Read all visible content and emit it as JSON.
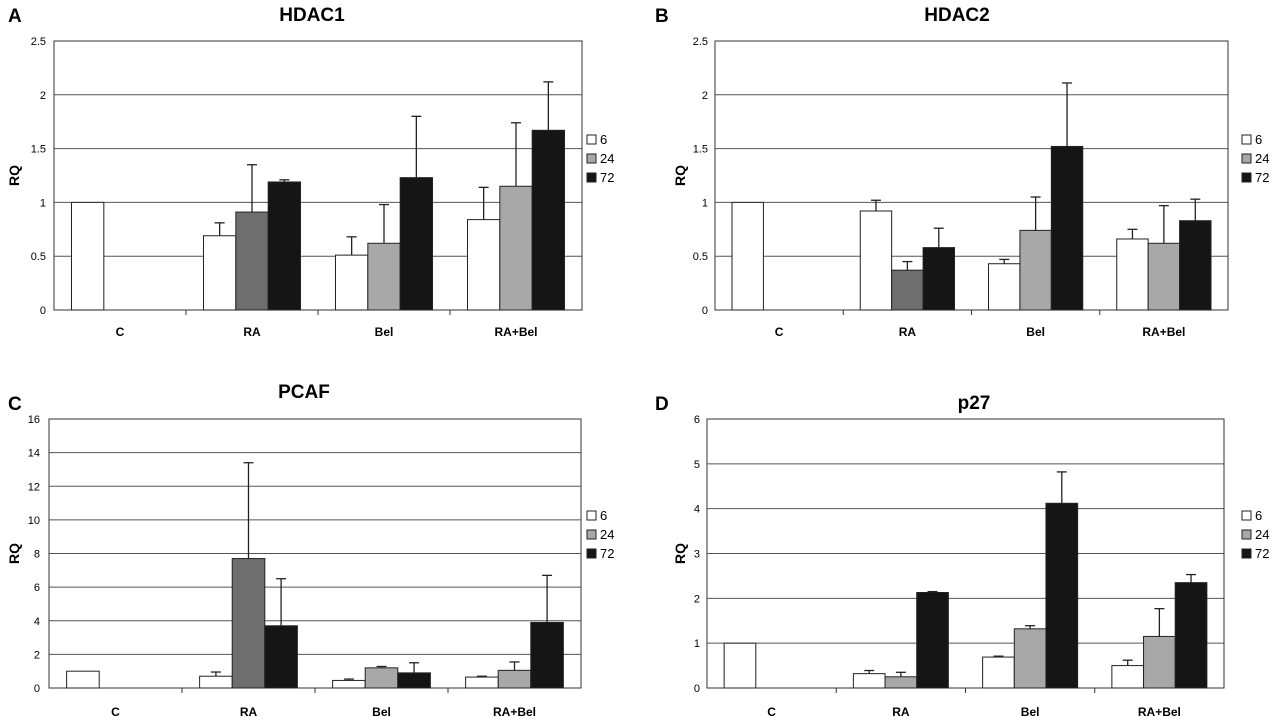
{
  "legend_entries": [
    "6",
    "24",
    "72"
  ],
  "series_colors": {
    "6": "#ffffff",
    "24": "#a8a8a8",
    "72": "#151515",
    "24-dark": "#6e6e6e"
  },
  "chart_data": [
    {
      "letter": "A",
      "title": "HDAC1",
      "type": "bar",
      "ylabel": "RQ",
      "ylim": [
        0,
        2.5
      ],
      "yticks": [
        "0",
        "0.5",
        "1",
        "1.5",
        "2",
        "2.5"
      ],
      "categories": [
        "C",
        "RA",
        "Bel",
        "RA+Bel"
      ],
      "grid": true,
      "legend_position": "right",
      "series": [
        {
          "name": "6",
          "values": [
            1.0,
            0.69,
            0.51,
            0.84
          ],
          "errors": [
            null,
            0.12,
            0.17,
            0.3
          ]
        },
        {
          "name": "24",
          "values": [
            null,
            0.91,
            0.62,
            1.15
          ],
          "errors": [
            null,
            0.44,
            0.36,
            0.59
          ]
        },
        {
          "name": "72",
          "values": [
            null,
            1.19,
            1.23,
            1.67
          ],
          "errors": [
            null,
            0.02,
            0.57,
            0.45
          ]
        }
      ]
    },
    {
      "letter": "B",
      "title": "HDAC2",
      "type": "bar",
      "ylabel": "RQ",
      "ylim": [
        0,
        2.5
      ],
      "yticks": [
        "0",
        "0.5",
        "1",
        "1.5",
        "2",
        "2.5"
      ],
      "categories": [
        "C",
        "RA",
        "Bel",
        "RA+Bel"
      ],
      "grid": true,
      "legend_position": "right",
      "series": [
        {
          "name": "6",
          "values": [
            1.0,
            0.92,
            0.43,
            0.66
          ],
          "errors": [
            null,
            0.1,
            0.04,
            0.09
          ]
        },
        {
          "name": "24",
          "values": [
            null,
            0.37,
            0.74,
            0.62
          ],
          "errors": [
            null,
            0.08,
            0.31,
            0.35
          ]
        },
        {
          "name": "72",
          "values": [
            null,
            0.58,
            1.52,
            0.83
          ],
          "errors": [
            null,
            0.18,
            0.59,
            0.2
          ]
        }
      ]
    },
    {
      "letter": "C",
      "title": "PCAF",
      "type": "bar",
      "ylabel": "RQ",
      "ylim": [
        0,
        16
      ],
      "yticks": [
        "0",
        "2",
        "4",
        "6",
        "8",
        "10",
        "12",
        "14",
        "16"
      ],
      "categories": [
        "C",
        "RA",
        "Bel",
        "RA+Bel"
      ],
      "grid": true,
      "legend_position": "right",
      "series": [
        {
          "name": "6",
          "values": [
            1.0,
            0.7,
            0.45,
            0.65
          ],
          "errors": [
            null,
            0.25,
            0.08,
            0.05
          ]
        },
        {
          "name": "24",
          "values": [
            null,
            7.7,
            1.2,
            1.05
          ],
          "errors": [
            null,
            5.7,
            0.08,
            0.5
          ]
        },
        {
          "name": "72",
          "values": [
            null,
            3.7,
            0.9,
            3.9
          ],
          "errors": [
            null,
            2.8,
            0.6,
            2.8
          ]
        }
      ]
    },
    {
      "letter": "D",
      "title": "p27",
      "type": "bar",
      "ylabel": "RQ",
      "ylim": [
        0,
        6
      ],
      "yticks": [
        "0",
        "1",
        "2",
        "3",
        "4",
        "5",
        "6"
      ],
      "categories": [
        "C",
        "RA",
        "Bel",
        "RA+Bel"
      ],
      "grid": true,
      "legend_position": "right",
      "series": [
        {
          "name": "6",
          "values": [
            1.0,
            0.32,
            0.69,
            0.5
          ],
          "errors": [
            null,
            0.07,
            0.02,
            0.12
          ]
        },
        {
          "name": "24",
          "values": [
            null,
            0.25,
            1.32,
            1.15
          ],
          "errors": [
            null,
            0.1,
            0.07,
            0.62
          ]
        },
        {
          "name": "72",
          "values": [
            null,
            2.13,
            4.12,
            2.35
          ],
          "errors": [
            null,
            0.02,
            0.7,
            0.18
          ]
        }
      ]
    }
  ]
}
